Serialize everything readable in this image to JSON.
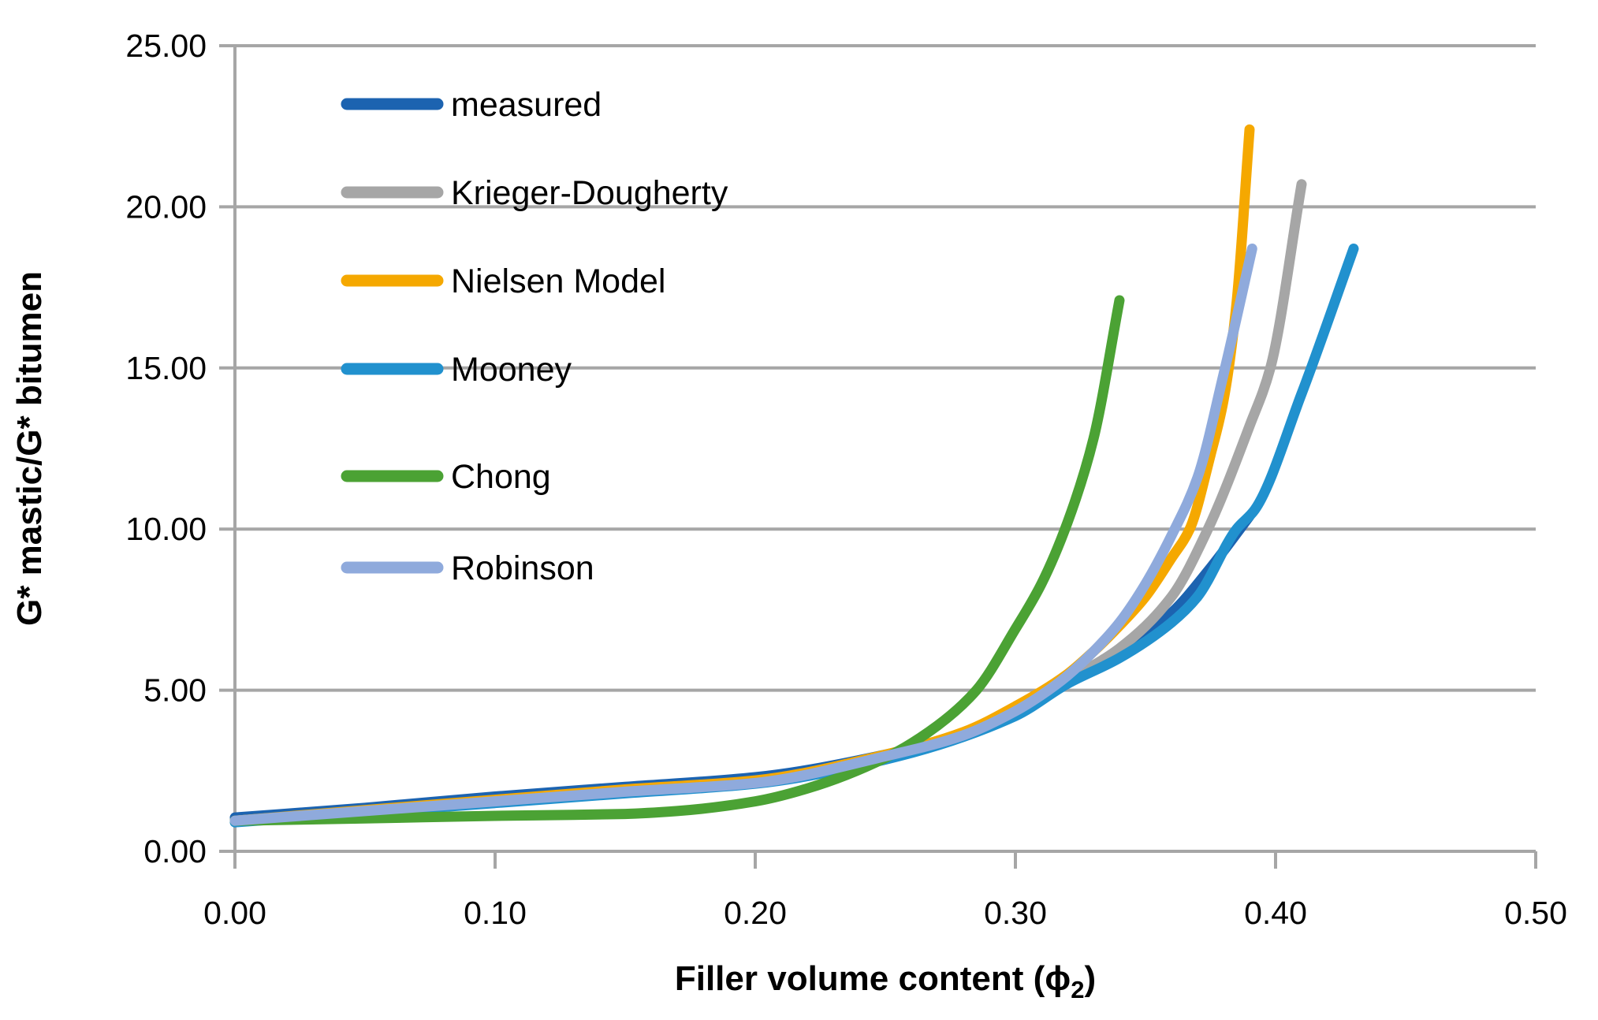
{
  "chart_data": {
    "type": "line",
    "title": "",
    "xlabel": {
      "text": "Filler volume content (ϕ",
      "sub": "2",
      "suffix": ")"
    },
    "ylabel": "G* mastic/G* bitumen",
    "xlim": [
      0,
      0.5
    ],
    "ylim": [
      0,
      25
    ],
    "x_ticks": [
      "0.00",
      "0.10",
      "0.20",
      "0.30",
      "0.40",
      "0.50"
    ],
    "y_ticks": [
      "0.00",
      "5.00",
      "10.00",
      "15.00",
      "20.00",
      "25.00"
    ],
    "grid": "horizontal",
    "legend_position": "inside-top-left",
    "axis_color": "#A6A6A6",
    "series": [
      {
        "name": "measured",
        "color": "#1C63B0",
        "points": [
          [
            0,
            1.05
          ],
          [
            0.05,
            1.35
          ],
          [
            0.1,
            1.7
          ],
          [
            0.15,
            2.0
          ],
          [
            0.2,
            2.3
          ],
          [
            0.25,
            3.0
          ],
          [
            0.275,
            3.55
          ],
          [
            0.3,
            4.35
          ],
          [
            0.32,
            5.3
          ],
          [
            0.34,
            6.2
          ],
          [
            0.36,
            7.4
          ],
          [
            0.375,
            8.8
          ],
          [
            0.39,
            10.4
          ]
        ]
      },
      {
        "name": "Krieger-Dougherty",
        "color": "#A6A6A6",
        "points": [
          [
            0,
            0.95
          ],
          [
            0.05,
            1.25
          ],
          [
            0.1,
            1.55
          ],
          [
            0.15,
            1.85
          ],
          [
            0.2,
            2.15
          ],
          [
            0.25,
            2.9
          ],
          [
            0.3,
            4.3
          ],
          [
            0.32,
            5.3
          ],
          [
            0.34,
            6.3
          ],
          [
            0.36,
            7.9
          ],
          [
            0.374,
            10.0
          ],
          [
            0.39,
            13.2
          ],
          [
            0.398,
            15.0
          ],
          [
            0.41,
            20.7
          ]
        ]
      },
      {
        "name": "Nielsen Model",
        "color": "#F5A800",
        "points": [
          [
            0,
            0.95
          ],
          [
            0.05,
            1.28
          ],
          [
            0.1,
            1.6
          ],
          [
            0.15,
            1.92
          ],
          [
            0.2,
            2.2
          ],
          [
            0.25,
            3.0
          ],
          [
            0.28,
            3.7
          ],
          [
            0.3,
            4.5
          ],
          [
            0.32,
            5.5
          ],
          [
            0.33,
            6.2
          ],
          [
            0.34,
            7.0
          ],
          [
            0.35,
            7.9
          ],
          [
            0.36,
            9.1
          ],
          [
            0.367,
            10.0
          ],
          [
            0.375,
            12.3
          ],
          [
            0.38,
            14.0
          ],
          [
            0.385,
            17.0
          ],
          [
            0.39,
            22.4
          ]
        ]
      },
      {
        "name": "Mooney",
        "color": "#2191CE",
        "points": [
          [
            0,
            0.9
          ],
          [
            0.05,
            1.2
          ],
          [
            0.1,
            1.5
          ],
          [
            0.15,
            1.8
          ],
          [
            0.2,
            2.1
          ],
          [
            0.25,
            2.85
          ],
          [
            0.3,
            4.2
          ],
          [
            0.32,
            5.2
          ],
          [
            0.34,
            6.0
          ],
          [
            0.36,
            7.1
          ],
          [
            0.37,
            7.9
          ],
          [
            0.385,
            10.0
          ],
          [
            0.392,
            10.6
          ],
          [
            0.41,
            14.2
          ],
          [
            0.43,
            18.7
          ]
        ]
      },
      {
        "name": "Chong",
        "color": "#4BA234",
        "points": [
          [
            0,
            0.95
          ],
          [
            0.05,
            1.02
          ],
          [
            0.1,
            1.1
          ],
          [
            0.13,
            1.13
          ],
          [
            0.15,
            1.16
          ],
          [
            0.17,
            1.25
          ],
          [
            0.2,
            1.55
          ],
          [
            0.22,
            1.95
          ],
          [
            0.25,
            2.9
          ],
          [
            0.27,
            3.9
          ],
          [
            0.285,
            5.0
          ],
          [
            0.3,
            6.9
          ],
          [
            0.31,
            8.3
          ],
          [
            0.32,
            10.2
          ],
          [
            0.33,
            12.8
          ],
          [
            0.34,
            17.1
          ]
        ]
      },
      {
        "name": "Robinson",
        "color": "#8FAADC",
        "points": [
          [
            0,
            0.95
          ],
          [
            0.05,
            1.25
          ],
          [
            0.1,
            1.55
          ],
          [
            0.15,
            1.85
          ],
          [
            0.2,
            2.12
          ],
          [
            0.25,
            2.95
          ],
          [
            0.28,
            3.6
          ],
          [
            0.3,
            4.35
          ],
          [
            0.31,
            4.85
          ],
          [
            0.32,
            5.45
          ],
          [
            0.33,
            6.2
          ],
          [
            0.34,
            7.1
          ],
          [
            0.35,
            8.3
          ],
          [
            0.36,
            9.8
          ],
          [
            0.37,
            11.6
          ],
          [
            0.38,
            14.8
          ],
          [
            0.391,
            18.7
          ]
        ]
      }
    ]
  }
}
